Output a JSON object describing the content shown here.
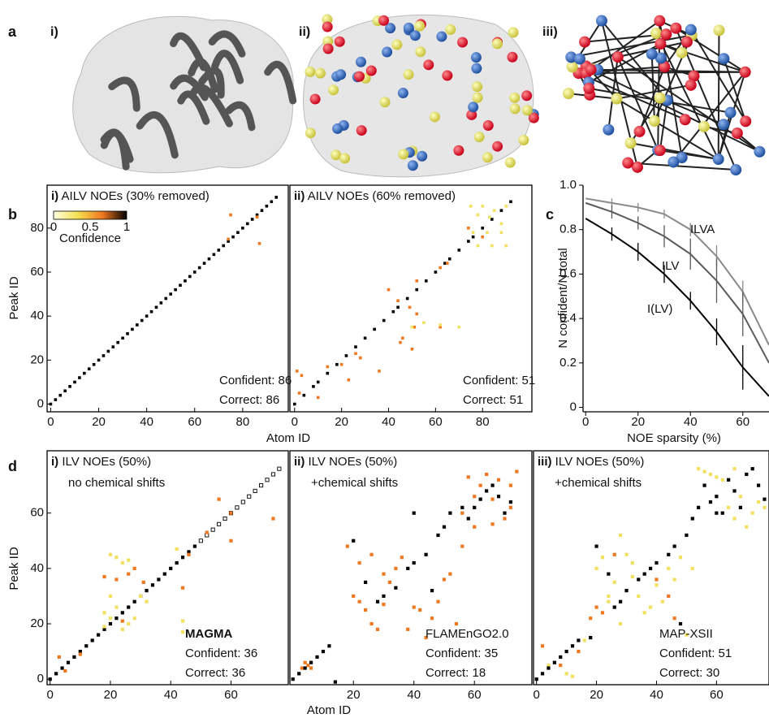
{
  "panel_labels": {
    "a": "a",
    "b": "b",
    "c": "c",
    "d": "d"
  },
  "panel_a": {
    "labels": [
      "i)",
      "ii)",
      "iii)"
    ]
  },
  "chart_data": [
    {
      "type": "scatter",
      "panel": "i)",
      "title": "AILV NOEs (30% removed)",
      "xlabel": "Atom ID",
      "ylabel": "Peak ID",
      "xlim": [
        -1.5,
        99
      ],
      "ylim": [
        -3.5,
        99.5
      ],
      "xticks": [
        0,
        20,
        40,
        60,
        80
      ],
      "yticks": [
        0,
        20,
        40,
        60,
        80
      ],
      "series": [
        {
          "color": "#000000",
          "x": [
            0,
            2,
            4,
            6,
            8,
            10,
            12,
            14,
            16,
            18,
            20,
            22,
            24,
            26,
            28,
            30,
            32,
            34,
            36,
            38,
            40,
            42,
            44,
            46,
            48,
            50,
            52,
            54,
            56,
            58,
            60,
            62,
            64,
            66,
            68,
            70,
            72,
            74,
            76,
            78,
            80,
            82,
            84,
            86,
            88,
            90,
            92,
            94
          ],
          "values": [
            0,
            2,
            4,
            6,
            8,
            10,
            12,
            14,
            16,
            18,
            20,
            22,
            24,
            26,
            28,
            30,
            32,
            34,
            36,
            38,
            40,
            42,
            44,
            46,
            48,
            50,
            52,
            54,
            56,
            58,
            60,
            62,
            64,
            66,
            68,
            70,
            72,
            74,
            76,
            78,
            80,
            82,
            84,
            86,
            88,
            90,
            92,
            94
          ]
        },
        {
          "color": "#f07820",
          "x": [
            75,
            87,
            86,
            74
          ],
          "values": [
            86,
            73,
            85,
            75
          ]
        }
      ],
      "annotations": [
        "Confident: 86",
        "Correct: 86"
      ],
      "colorbar": {
        "label": "Confidence",
        "lim": [
          0,
          1
        ],
        "ticks": [
          0,
          0.5,
          1
        ],
        "colors": [
          "#ffffe0",
          "#f5e050",
          "#f07820",
          "#000000"
        ]
      }
    },
    {
      "type": "scatter",
      "panel": "ii)",
      "title": "AILV NOEs (60% removed)",
      "xlim": [
        -2,
        101
      ],
      "ylim": [
        -3.5,
        99.5
      ],
      "xticks": [
        0,
        20,
        40,
        60,
        80
      ],
      "series": [
        {
          "color": "#000000",
          "x": [
            0,
            4,
            8,
            10,
            14,
            18,
            22,
            26,
            30,
            34,
            38,
            42,
            44,
            48,
            52,
            56,
            60,
            64,
            66,
            70,
            74,
            76,
            80,
            84,
            88,
            92
          ],
          "values": [
            0,
            4,
            8,
            10,
            14,
            18,
            22,
            26,
            30,
            34,
            38,
            42,
            44,
            48,
            52,
            56,
            60,
            64,
            66,
            70,
            74,
            76,
            80,
            84,
            88,
            92
          ]
        },
        {
          "color": "#f07820",
          "x": [
            2,
            1,
            3,
            10,
            14,
            20,
            23,
            26,
            28,
            36,
            40,
            44,
            45,
            46,
            49,
            50,
            52,
            52,
            51,
            62,
            65,
            74,
            80,
            62
          ],
          "values": [
            5,
            15,
            13,
            3,
            17,
            18,
            11,
            23,
            21,
            15,
            52,
            47,
            28,
            30,
            44,
            25,
            41,
            56,
            35,
            62,
            64,
            80,
            76,
            35
          ]
        },
        {
          "color": "#f2e060",
          "x": [
            50,
            62,
            75,
            80,
            85,
            90,
            78,
            83,
            88,
            76,
            82,
            88,
            78,
            84,
            90,
            70,
            55
          ],
          "values": [
            35,
            36,
            90,
            90,
            88,
            90,
            86,
            85,
            82,
            78,
            78,
            78,
            72,
            72,
            72,
            35,
            37
          ]
        }
      ],
      "annotations": [
        "Confident: 51",
        "Correct: 51"
      ]
    },
    {
      "type": "line",
      "xlabel": "NOE sparsity (%)",
      "ylabel": "N confident/N total",
      "xlim": [
        -1,
        70
      ],
      "ylim": [
        -0.02,
        1.0
      ],
      "xticks": [
        0,
        20,
        40,
        60
      ],
      "yticks": [
        0,
        0.2,
        0.4,
        0.6,
        0.8,
        {
          "value": 1,
          "label": "1.0"
        }
      ],
      "series": [
        {
          "name": "ILVA",
          "color": "#8a8a8a",
          "x": [
            0,
            10,
            20,
            30,
            40,
            50,
            60,
            70
          ],
          "values": [
            0.94,
            0.92,
            0.9,
            0.87,
            0.8,
            0.68,
            0.52,
            0.28
          ],
          "errors": [
            null,
            0.02,
            0.02,
            0.02,
            0.03,
            0.05,
            0.05,
            null
          ]
        },
        {
          "name": "ILV",
          "color": "#5a5a5a",
          "x": [
            0,
            10,
            20,
            30,
            40,
            50,
            60,
            70
          ],
          "values": [
            0.92,
            0.88,
            0.83,
            0.77,
            0.69,
            0.57,
            0.42,
            0.2
          ],
          "errors": [
            null,
            0.03,
            0.03,
            0.05,
            0.07,
            0.1,
            0.1,
            null
          ]
        },
        {
          "name": "I(LV)",
          "color": "#000000",
          "x": [
            0,
            10,
            20,
            30,
            40,
            50,
            60,
            70
          ],
          "values": [
            0.85,
            0.78,
            0.7,
            0.6,
            0.48,
            0.34,
            0.18,
            0.05
          ],
          "errors": [
            null,
            0.03,
            0.04,
            0.04,
            0.04,
            0.06,
            0.1,
            null
          ]
        }
      ]
    },
    {
      "type": "scatter",
      "panel": "i)",
      "title": "ILV NOEs (50%)",
      "subtitle": "no chemical shifts",
      "ylabel": "Peak ID",
      "xlim": [
        -1,
        79
      ],
      "ylim": [
        -2,
        82.5
      ],
      "xticks": [
        0,
        20,
        40,
        60
      ],
      "yticks": [
        0,
        20,
        40,
        60
      ],
      "series": [
        {
          "color": "#000000",
          "x": [
            0,
            2,
            4,
            6,
            8,
            10,
            12,
            14,
            16,
            18,
            20,
            22,
            24,
            26,
            28,
            30,
            32,
            34,
            36,
            38,
            40,
            42,
            44,
            46,
            48
          ],
          "values": [
            0,
            2,
            4,
            6,
            8,
            10,
            12,
            14,
            16,
            18,
            20,
            22,
            24,
            26,
            28,
            30,
            32,
            34,
            36,
            38,
            40,
            42,
            44,
            46,
            48
          ]
        },
        {
          "color": "#000000",
          "marker": "open",
          "x": [
            50,
            52,
            54,
            56,
            58,
            60,
            62,
            64,
            66,
            68,
            70,
            72,
            74,
            76
          ],
          "values": [
            50,
            52,
            54,
            56,
            58,
            60,
            62,
            64,
            66,
            68,
            70,
            72,
            74,
            76
          ]
        },
        {
          "color": "#f07820",
          "x": [
            3,
            5,
            10,
            18,
            22,
            26,
            28,
            44,
            46,
            52,
            56,
            60,
            60,
            74,
            31,
            24
          ],
          "values": [
            8,
            3,
            9,
            37,
            36,
            38,
            40,
            33,
            45,
            53,
            65,
            60,
            50,
            58,
            35,
            21
          ]
        },
        {
          "color": "#f2e060",
          "x": [
            20,
            22,
            24,
            26,
            20,
            18,
            22,
            24,
            26,
            28,
            20,
            18,
            44,
            44,
            42,
            30,
            32
          ],
          "values": [
            45,
            44,
            42,
            43,
            22,
            24,
            26,
            18,
            20,
            22,
            30,
            19,
            17,
            21,
            47,
            30,
            28
          ]
        }
      ],
      "annotations": [
        {
          "text": "MAGMA",
          "bold": true
        },
        "Confident: 36",
        "Correct: 36"
      ]
    },
    {
      "type": "scatter",
      "panel": "ii)",
      "title": "ILV NOEs (50%)",
      "subtitle": "+chemical shifts",
      "xlabel": "Atom ID",
      "xlim": [
        -1,
        79
      ],
      "ylim": [
        -2,
        82.5
      ],
      "xticks": [
        20,
        40,
        60
      ],
      "series": [
        {
          "color": "#f07820",
          "x": [
            4,
            6,
            5,
            3,
            18,
            20,
            22,
            24,
            26,
            28,
            30,
            32,
            34,
            26,
            22,
            36,
            40,
            42,
            44,
            46,
            48,
            50,
            52,
            54,
            56,
            58,
            60,
            62,
            64,
            66,
            68,
            70,
            72,
            74,
            56,
            60,
            66,
            72,
            38,
            30
          ],
          "values": [
            6,
            4,
            5,
            4,
            48,
            30,
            28,
            25,
            20,
            18,
            27,
            35,
            40,
            45,
            42,
            44,
            26,
            25,
            15,
            22,
            28,
            36,
            38,
            20,
            48,
            73,
            66,
            70,
            74,
            65,
            72,
            58,
            62,
            75,
            60,
            55,
            56,
            70,
            18,
            38
          ]
        },
        {
          "color": "#000000",
          "x": [
            0,
            2,
            4,
            6,
            8,
            10,
            12,
            14,
            20,
            24,
            28,
            30,
            34,
            38,
            40,
            44,
            46,
            48,
            50,
            52,
            56,
            58,
            60,
            62,
            64,
            66,
            68,
            70,
            72,
            40
          ],
          "values": [
            0,
            2,
            4,
            6,
            8,
            10,
            12,
            -1,
            50,
            35,
            28,
            30,
            33,
            40,
            42,
            45,
            32,
            52,
            55,
            60,
            62,
            58,
            62,
            65,
            68,
            70,
            66,
            60,
            64,
            60
          ]
        }
      ],
      "annotations": [
        "FLAMEnGO2.0",
        "Confident: 35",
        "Correct: 18"
      ]
    },
    {
      "type": "scatter",
      "panel": "iii)",
      "title": "ILV NOEs (50%)",
      "subtitle": "+chemical shifts",
      "xlim": [
        -1,
        77.5
      ],
      "ylim": [
        -2,
        82.5
      ],
      "xticks": [
        0,
        20,
        40,
        60
      ],
      "series": [
        {
          "color": "#f2e060",
          "x": [
            4,
            10,
            12,
            16,
            20,
            22,
            24,
            26,
            28,
            30,
            32,
            34,
            36,
            38,
            40,
            42,
            44,
            46,
            48,
            50,
            52,
            54,
            56,
            58,
            60,
            62,
            64,
            66,
            68,
            70,
            72,
            74,
            76,
            66,
            24,
            28,
            32
          ],
          "values": [
            5,
            2,
            1,
            14,
            40,
            44,
            30,
            35,
            52,
            45,
            42,
            30,
            24,
            26,
            34,
            28,
            40,
            36,
            44,
            16,
            40,
            76,
            75,
            74,
            73,
            72,
            62,
            58,
            66,
            55,
            60,
            64,
            62,
            76,
            28,
            20,
            37
          ]
        },
        {
          "color": "#f07820",
          "x": [
            18,
            20,
            22,
            26,
            40,
            44,
            46,
            2,
            8,
            14
          ],
          "values": [
            22,
            26,
            24,
            45,
            36,
            30,
            22,
            12,
            5,
            10
          ]
        },
        {
          "color": "#000000",
          "x": [
            0,
            2,
            4,
            6,
            8,
            10,
            12,
            14,
            18,
            20,
            24,
            26,
            28,
            30,
            34,
            36,
            38,
            40,
            44,
            46,
            48,
            50,
            52,
            54,
            56,
            58,
            60,
            62,
            64,
            66,
            68,
            70,
            72,
            74,
            76,
            60
          ],
          "values": [
            0,
            2,
            4,
            6,
            8,
            10,
            12,
            14,
            15,
            48,
            38,
            26,
            28,
            32,
            36,
            38,
            40,
            42,
            45,
            48,
            20,
            52,
            58,
            62,
            70,
            64,
            66,
            60,
            72,
            68,
            62,
            74,
            76,
            70,
            65,
            60
          ]
        }
      ],
      "annotations": [
        "MAP-XSII",
        "Confident: 51",
        "Correct: 30"
      ]
    }
  ]
}
